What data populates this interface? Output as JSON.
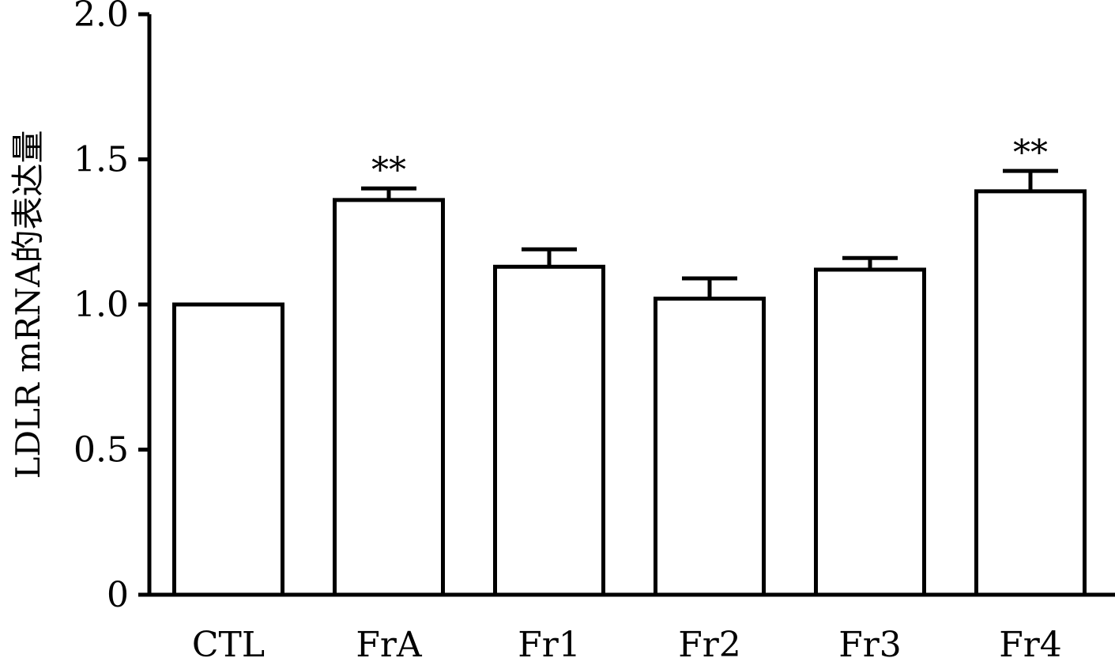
{
  "chart_data": {
    "type": "bar",
    "title": "",
    "xlabel": "",
    "ylabel": "LDLR mRNA的表达量",
    "ylim": [
      0,
      2.0
    ],
    "yticks": [
      0,
      0.5,
      1.0,
      1.5,
      2.0
    ],
    "ytick_labels": [
      "0",
      "0.5",
      "1.0",
      "1.5",
      "2.0"
    ],
    "categories": [
      "CTL",
      "FrA",
      "Fr1",
      "Fr2",
      "Fr3",
      "Fr4"
    ],
    "values": [
      1.0,
      1.36,
      1.13,
      1.02,
      1.12,
      1.39
    ],
    "errors": [
      0,
      0.04,
      0.06,
      0.07,
      0.04,
      0.07
    ],
    "annotations": [
      "",
      "**",
      "",
      "",
      "",
      "**"
    ],
    "grid": false,
    "bar_fill": "#ffffff",
    "bar_stroke": "#000000"
  }
}
